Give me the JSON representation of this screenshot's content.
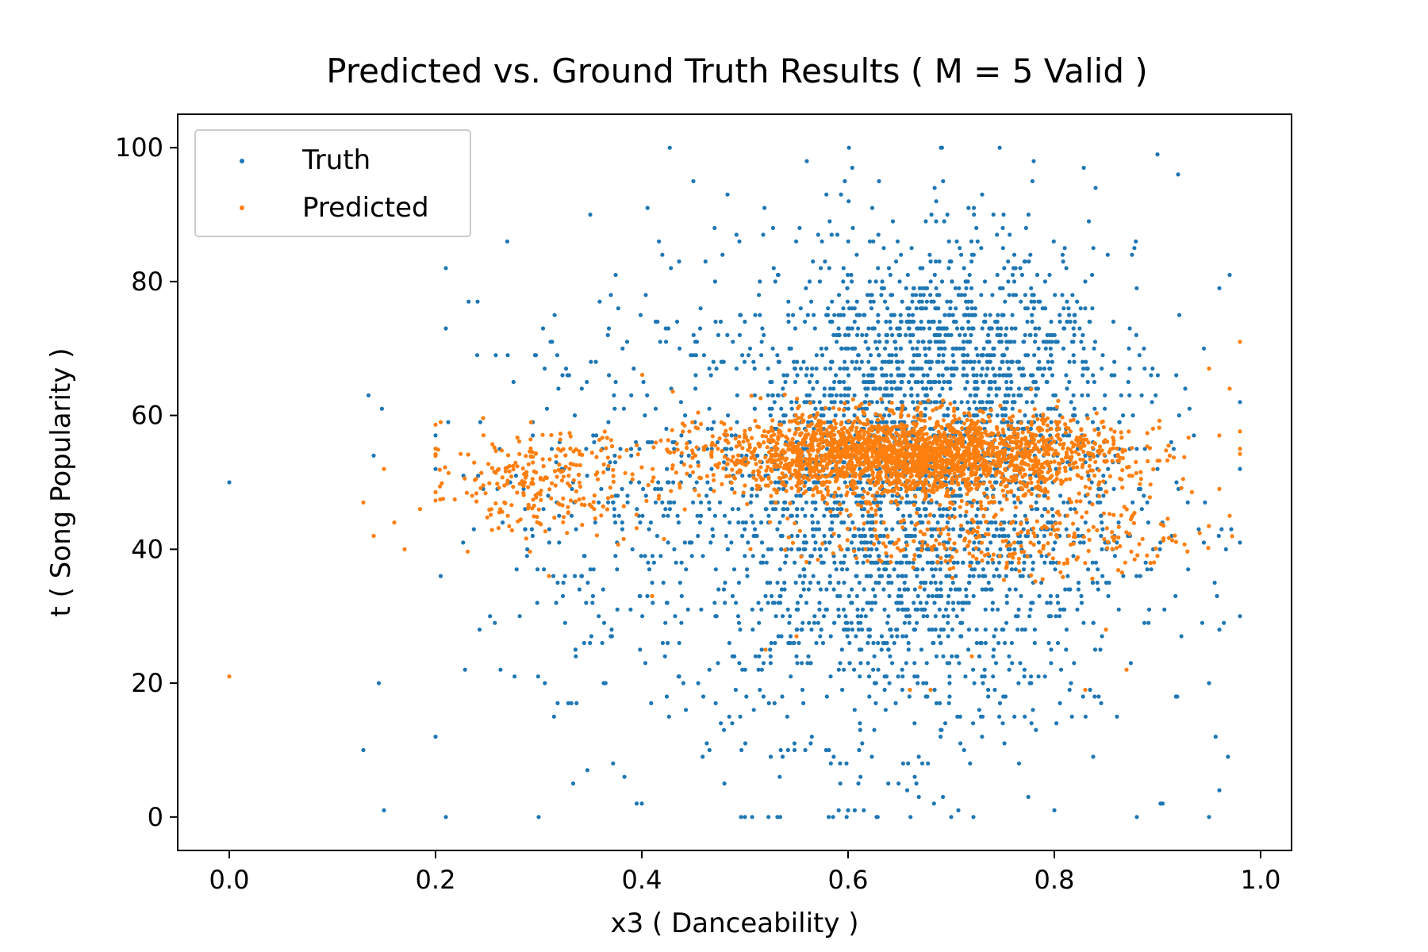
{
  "chart_data": {
    "type": "scatter",
    "title": "Predicted vs. Ground Truth Results ( M = 5 Valid )",
    "xlabel": "x3 ( Danceability )",
    "ylabel": "t ( Song Popularity )",
    "xlim": [
      -0.05,
      1.03
    ],
    "ylim": [
      -5,
      105
    ],
    "xticks": [
      0.0,
      0.2,
      0.4,
      0.6,
      0.8,
      1.0
    ],
    "xtick_labels": [
      "0.0",
      "0.2",
      "0.4",
      "0.6",
      "0.8",
      "1.0"
    ],
    "yticks": [
      0,
      20,
      40,
      60,
      80,
      100
    ],
    "ytick_labels": [
      "0",
      "20",
      "40",
      "60",
      "80",
      "100"
    ],
    "grid": false,
    "legend_position": "upper-left",
    "series": [
      {
        "name": "Truth",
        "color": "#1f77b4",
        "sample_points": [
          [
            0.0,
            50
          ],
          [
            0.13,
            10
          ],
          [
            0.135,
            63
          ],
          [
            0.14,
            54
          ],
          [
            0.145,
            20
          ],
          [
            0.148,
            61
          ],
          [
            0.15,
            1
          ],
          [
            0.21,
            82
          ],
          [
            0.205,
            36
          ],
          [
            0.21,
            0
          ],
          [
            0.21,
            73
          ],
          [
            0.27,
            69
          ],
          [
            0.35,
            90
          ],
          [
            0.37,
            78
          ],
          [
            0.45,
            95
          ],
          [
            0.56,
            98
          ],
          [
            0.63,
            95
          ],
          [
            0.69,
            100
          ],
          [
            0.73,
            93
          ],
          [
            0.78,
            98
          ],
          [
            0.84,
            94
          ],
          [
            0.9,
            99
          ],
          [
            0.92,
            96
          ],
          [
            0.97,
            81
          ],
          [
            0.96,
            79
          ],
          [
            0.98,
            52
          ],
          [
            0.96,
            28
          ],
          [
            0.95,
            20
          ],
          [
            0.95,
            0
          ],
          [
            0.96,
            4
          ],
          [
            0.3,
            0
          ],
          [
            0.4,
            2
          ],
          [
            0.5,
            0
          ],
          [
            0.6,
            1
          ],
          [
            0.7,
            0
          ],
          [
            0.8,
            1
          ],
          [
            0.88,
            0
          ],
          [
            0.55,
            24
          ],
          [
            0.65,
            32
          ],
          [
            0.75,
            14
          ],
          [
            0.6,
            70
          ],
          [
            0.7,
            72
          ],
          [
            0.75,
            88
          ],
          [
            0.65,
            80
          ]
        ],
        "clusters": [
          {
            "x_center": 0.65,
            "x_spread": 0.15,
            "y_center": 48,
            "y_spread": 24,
            "count": 2600
          },
          {
            "x_center": 0.72,
            "x_spread": 0.09,
            "y_center": 70,
            "y_spread": 10,
            "count": 500
          },
          {
            "x_center": 0.35,
            "x_spread": 0.09,
            "y_center": 45,
            "y_spread": 22,
            "count": 200
          }
        ]
      },
      {
        "name": "Predicted",
        "color": "#ff7f0e",
        "sample_points": [
          [
            0.0,
            21
          ],
          [
            0.13,
            47
          ],
          [
            0.14,
            42
          ],
          [
            0.15,
            52
          ],
          [
            0.16,
            44
          ],
          [
            0.17,
            40
          ],
          [
            0.185,
            46
          ],
          [
            0.205,
            59
          ],
          [
            0.31,
            36
          ],
          [
            0.55,
            27
          ],
          [
            0.52,
            25
          ],
          [
            0.66,
            19
          ],
          [
            0.68,
            19
          ],
          [
            0.72,
            24
          ],
          [
            0.83,
            19
          ],
          [
            0.87,
            22
          ],
          [
            0.98,
            71
          ],
          [
            0.97,
            64
          ],
          [
            0.96,
            57
          ],
          [
            0.95,
            67
          ],
          [
            0.97,
            45
          ],
          [
            0.96,
            49
          ],
          [
            0.9,
            39
          ],
          [
            0.85,
            28
          ],
          [
            0.41,
            33
          ]
        ],
        "clusters": [
          {
            "x_center": 0.66,
            "x_spread": 0.13,
            "y_center": 54,
            "y_spread": 4,
            "count": 2600
          },
          {
            "x_center": 0.3,
            "x_spread": 0.07,
            "y_center": 50,
            "y_spread": 5,
            "count": 250
          },
          {
            "x_center": 0.75,
            "x_spread": 0.12,
            "y_center": 42,
            "y_spread": 4,
            "count": 300
          }
        ]
      }
    ]
  }
}
